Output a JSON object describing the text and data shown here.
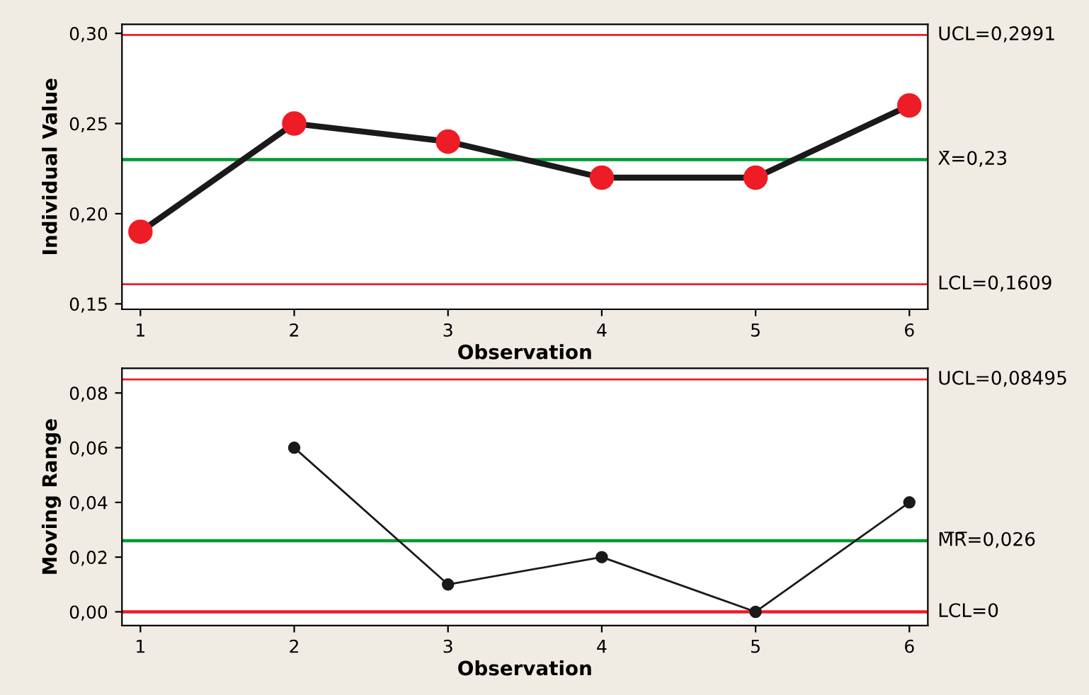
{
  "chart_data": [
    {
      "type": "line",
      "xlabel": "Observation",
      "ylabel": "Individual Value",
      "marker": "circle",
      "line_style": "solid",
      "x": [
        1,
        2,
        3,
        4,
        5,
        6
      ],
      "series": [
        {
          "color": "#1a1a1a",
          "colors": [
            "#ee1c25",
            "#ee1c25",
            "#ee1c25",
            "#ee1c25",
            "#ee1c25",
            "#ee1c25"
          ],
          "values": [
            0.19,
            0.25,
            0.24,
            0.22,
            0.22,
            0.26
          ]
        }
      ],
      "xlim": [
        0.88,
        6.12
      ],
      "xticks": [
        1,
        2,
        3,
        4,
        5,
        6
      ],
      "ylim": [
        0.147,
        0.305
      ],
      "yticks": [
        {
          "value": 0.15,
          "label": "0,15"
        },
        {
          "value": 0.2,
          "label": "0,20"
        },
        {
          "value": 0.25,
          "label": "0,25"
        },
        {
          "value": 0.3,
          "label": "0,30"
        }
      ],
      "ref_lines": [
        {
          "axis": "y",
          "value": 0.2991,
          "label": "UCL=0,2991",
          "color": "#ee1c25"
        },
        {
          "axis": "y",
          "value": 0.23,
          "label": "X̄=0,23",
          "color": "#009933"
        },
        {
          "axis": "y",
          "value": 0.1609,
          "label": "LCL=0,1609",
          "color": "#ee1c25"
        }
      ]
    },
    {
      "type": "line",
      "xlabel": "Observation",
      "ylabel": "Moving Range",
      "marker": "circle",
      "line_style": "solid",
      "x": [
        2,
        3,
        4,
        5,
        6
      ],
      "series": [
        {
          "color": "#1a1a1a",
          "values": [
            0.06,
            0.01,
            0.02,
            0.0,
            0.04
          ]
        }
      ],
      "xlim": [
        0.88,
        6.12
      ],
      "xticks": [
        1,
        2,
        3,
        4,
        5,
        6
      ],
      "ylim": [
        -0.005,
        0.089
      ],
      "yticks": [
        {
          "value": 0.0,
          "label": "0,00"
        },
        {
          "value": 0.02,
          "label": "0,02"
        },
        {
          "value": 0.04,
          "label": "0,04"
        },
        {
          "value": 0.06,
          "label": "0,06"
        },
        {
          "value": 0.08,
          "label": "0,08"
        }
      ],
      "ref_lines": [
        {
          "axis": "y",
          "value": 0.08495,
          "label": "UCL=0,08495",
          "color": "#ee1c25"
        },
        {
          "axis": "y",
          "value": 0.026,
          "label": "M̅R̅=0,026",
          "color": "#009933"
        },
        {
          "axis": "y",
          "value": 0,
          "label": "LCL=0",
          "color": "#ee1c25"
        }
      ]
    }
  ]
}
